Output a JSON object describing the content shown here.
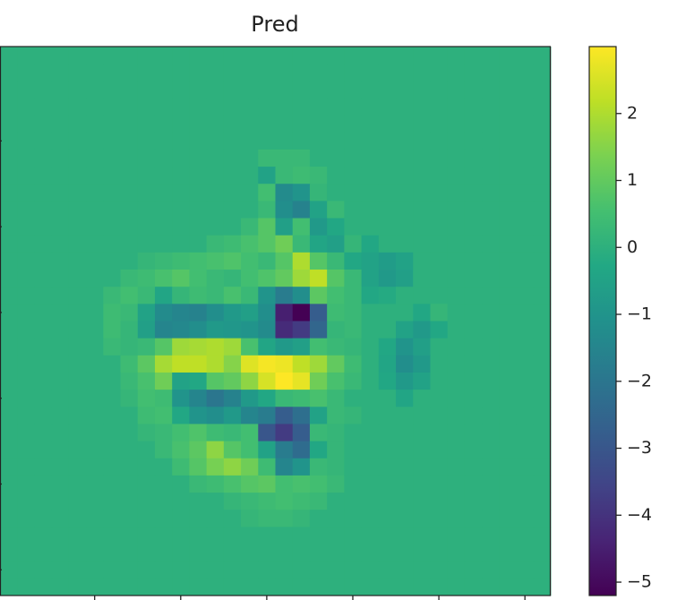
{
  "chart_data": {
    "type": "heatmap",
    "title": "Pred",
    "colormap": "viridis",
    "clim": [
      -5.2,
      3.0
    ],
    "xlim": [
      -0.5,
      31.5
    ],
    "ylim": [
      31.5,
      -0.5
    ],
    "xticks": [
      5,
      10,
      15,
      20,
      25,
      30
    ],
    "yticks": [
      5,
      10,
      15,
      20,
      25,
      30
    ],
    "colorbar_ticks": [
      {
        "value": 2,
        "label": "2"
      },
      {
        "value": 1,
        "label": "1"
      },
      {
        "value": 0,
        "label": "0"
      },
      {
        "value": -1,
        "label": "−1"
      },
      {
        "value": -2,
        "label": "−2"
      },
      {
        "value": -3,
        "label": "−3"
      },
      {
        "value": -4,
        "label": "−4"
      },
      {
        "value": -5,
        "label": "−5"
      }
    ],
    "values": [
      [
        0,
        0,
        0,
        0,
        0,
        0,
        0,
        0,
        0,
        0,
        0,
        0,
        0,
        0,
        0,
        0,
        0,
        0,
        0,
        0,
        0,
        0,
        0,
        0,
        0,
        0,
        0,
        0,
        0,
        0,
        0,
        0
      ],
      [
        0,
        0,
        0,
        0,
        0,
        0,
        0,
        0,
        0,
        0,
        0,
        0,
        0,
        0,
        0,
        0,
        0,
        0,
        0,
        0,
        0,
        0,
        0,
        0,
        0,
        0,
        0,
        0,
        0,
        0,
        0,
        0
      ],
      [
        0,
        0,
        0,
        0,
        0,
        0,
        0,
        0,
        0,
        0,
        0,
        0,
        0,
        0,
        0,
        0,
        0,
        0,
        0,
        0,
        0,
        0,
        0,
        0,
        0,
        0,
        0,
        0,
        0,
        0,
        0,
        0
      ],
      [
        0,
        0,
        0,
        0,
        0,
        0,
        0,
        0,
        0,
        0,
        0,
        0,
        0,
        0,
        0,
        0,
        0,
        0,
        0,
        0,
        0,
        0,
        0,
        0,
        0,
        0,
        0,
        0,
        0,
        0,
        0,
        0
      ],
      [
        0,
        0,
        0,
        0,
        0,
        0,
        0,
        0,
        0,
        0,
        0,
        0,
        0,
        0,
        0,
        0,
        0,
        0,
        0,
        0,
        0,
        0,
        0,
        0,
        0,
        0,
        0,
        0,
        0,
        0,
        0,
        0
      ],
      [
        0,
        0,
        0,
        0,
        0,
        0,
        0,
        0,
        0,
        0,
        0,
        0,
        0,
        0,
        0,
        0,
        0,
        0,
        0,
        0,
        0,
        0,
        0,
        0,
        0,
        0,
        0,
        0,
        0,
        0,
        0,
        0
      ],
      [
        0,
        0,
        0,
        0,
        0,
        0,
        0,
        0,
        0,
        0,
        0,
        0,
        0,
        0,
        0,
        0.3,
        0.3,
        0.3,
        0,
        0,
        0,
        0,
        0,
        0,
        0,
        0,
        0,
        0,
        0,
        0,
        0,
        0
      ],
      [
        0,
        0,
        0,
        0,
        0,
        0,
        0,
        0,
        0,
        0,
        0,
        0,
        0,
        0,
        0,
        -0.5,
        0.3,
        0.4,
        0.3,
        0,
        0,
        0,
        0,
        0,
        0,
        0,
        0,
        0,
        0,
        0,
        0,
        0
      ],
      [
        0,
        0,
        0,
        0,
        0,
        0,
        0,
        0,
        0,
        0,
        0,
        0,
        0,
        0,
        0,
        0.5,
        -1.3,
        -1.0,
        0.2,
        0,
        0,
        0,
        0,
        0,
        0,
        0,
        0,
        0,
        0,
        0,
        0,
        0
      ],
      [
        0,
        0,
        0,
        0,
        0,
        0,
        0,
        0,
        0,
        0,
        0,
        0,
        0,
        0,
        0,
        0.3,
        -1.2,
        -1.6,
        -0.5,
        0.3,
        0,
        0,
        0,
        0,
        0,
        0,
        0,
        0,
        0,
        0,
        0,
        0
      ],
      [
        0,
        0,
        0,
        0,
        0,
        0,
        0,
        0,
        0,
        0,
        0,
        0,
        0,
        0,
        0.3,
        0.8,
        -0.6,
        0.5,
        -0.8,
        -0.3,
        0,
        0,
        0,
        0,
        0,
        0,
        0,
        0,
        0,
        0,
        0,
        0
      ],
      [
        0,
        0,
        0,
        0,
        0,
        0,
        0,
        0,
        0,
        0,
        0,
        0,
        0.3,
        0.4,
        0.6,
        0.8,
        1.2,
        0.3,
        -0.4,
        -0.6,
        0.2,
        -0.3,
        0,
        0,
        0,
        0,
        0,
        0,
        0,
        0,
        0,
        0
      ],
      [
        0,
        0,
        0,
        0,
        0,
        0,
        0,
        0,
        0.2,
        0.3,
        0.4,
        0.5,
        0.6,
        0.7,
        0.5,
        0.3,
        0.8,
        2.0,
        0.8,
        0.3,
        -0.3,
        -0.5,
        -0.7,
        -0.5,
        0,
        0,
        0,
        0,
        0,
        0,
        0,
        0
      ],
      [
        0,
        0,
        0,
        0,
        0,
        0,
        0,
        0.3,
        0.4,
        0.6,
        0.8,
        0.5,
        0.3,
        0.2,
        0.5,
        0.7,
        1.0,
        1.8,
        2.2,
        0.8,
        0.3,
        -0.5,
        -0.8,
        -0.6,
        0,
        0,
        0,
        0,
        0,
        0,
        0,
        0
      ],
      [
        0,
        0,
        0,
        0,
        0,
        0,
        0.3,
        0.5,
        0.3,
        -0.4,
        0.2,
        0.4,
        0.3,
        0.6,
        0.3,
        -1.0,
        -1.8,
        -1.2,
        0.9,
        0.5,
        0.3,
        -0.3,
        -0.2,
        0,
        0,
        0,
        0,
        0,
        0,
        0,
        0,
        0
      ],
      [
        0,
        0,
        0,
        0,
        0,
        0,
        0.4,
        0.3,
        -0.5,
        -1.3,
        -1.5,
        -1.6,
        -1.2,
        -0.8,
        -0.6,
        -1.2,
        -4.5,
        -5.2,
        -2.8,
        0.4,
        0.3,
        0,
        0,
        0,
        -0.3,
        0.2,
        0,
        0,
        0,
        0,
        0,
        0
      ],
      [
        0,
        0,
        0,
        0,
        0,
        0,
        0.4,
        0.2,
        -0.6,
        -1.5,
        -1.4,
        -1.2,
        -0.8,
        -0.9,
        -1.0,
        -1.3,
        -4.2,
        -3.8,
        -2.5,
        0.2,
        0.3,
        0,
        0,
        -0.5,
        -0.8,
        -0.3,
        0,
        0,
        0,
        0,
        0,
        0
      ],
      [
        0,
        0,
        0,
        0,
        0,
        0,
        0.3,
        0.2,
        0.3,
        0.8,
        1.8,
        1.9,
        2.0,
        1.8,
        0.6,
        -0.4,
        -0.8,
        -0.6,
        0.5,
        0.3,
        0.2,
        0,
        -0.3,
        -1.0,
        -0.6,
        0,
        0,
        0,
        0,
        0,
        0,
        0
      ],
      [
        0,
        0,
        0,
        0,
        0,
        0,
        0,
        0.4,
        0.9,
        1.9,
        2.2,
        2.2,
        2.0,
        1.5,
        2.6,
        2.9,
        2.8,
        2.2,
        1.8,
        1.0,
        0.4,
        0,
        -0.4,
        -1.2,
        -0.8,
        0,
        0,
        0,
        0,
        0,
        0,
        0
      ],
      [
        0,
        0,
        0,
        0,
        0,
        0,
        0,
        0.3,
        0.6,
        1.2,
        -0.5,
        -0.3,
        0.8,
        1.0,
        1.6,
        2.5,
        3.0,
        2.7,
        1.2,
        0.6,
        0.3,
        0,
        -0.3,
        -0.8,
        -0.5,
        0,
        0,
        0,
        0,
        0,
        0,
        0
      ],
      [
        0,
        0,
        0,
        0,
        0,
        0,
        0,
        0.2,
        0.5,
        0.4,
        -1.0,
        -1.5,
        -2.0,
        -1.6,
        -0.8,
        -0.3,
        0.3,
        0.4,
        0.6,
        0.3,
        0,
        0,
        0,
        -0.4,
        0,
        0,
        0,
        0,
        0,
        0,
        0,
        0
      ],
      [
        0,
        0,
        0,
        0,
        0,
        0,
        0,
        0,
        0.4,
        0.5,
        -0.3,
        -1.0,
        -1.2,
        -0.8,
        -1.5,
        -1.8,
        -2.8,
        -2.2,
        -0.5,
        0.3,
        0.2,
        0,
        0,
        0,
        0,
        0,
        0,
        0,
        0,
        0,
        0,
        0
      ],
      [
        0,
        0,
        0,
        0,
        0,
        0,
        0,
        0,
        0.2,
        0.3,
        0.5,
        0.7,
        0.4,
        0.3,
        0.5,
        -3.0,
        -3.8,
        -2.8,
        0.3,
        0.2,
        0,
        0,
        0,
        0,
        0,
        0,
        0,
        0,
        0,
        0,
        0,
        0
      ],
      [
        0,
        0,
        0,
        0,
        0,
        0,
        0,
        0,
        0,
        0.3,
        0.6,
        0.9,
        1.6,
        0.8,
        0.5,
        -0.5,
        -1.8,
        -2.3,
        -0.3,
        0.2,
        0,
        0,
        0,
        0,
        0,
        0,
        0,
        0,
        0,
        0,
        0,
        0
      ],
      [
        0,
        0,
        0,
        0,
        0,
        0,
        0,
        0,
        0,
        0,
        0.4,
        0.8,
        1.3,
        1.6,
        1.2,
        0.4,
        -1.5,
        -1.0,
        0.3,
        0.2,
        0,
        0,
        0,
        0,
        0,
        0,
        0,
        0,
        0,
        0,
        0,
        0
      ],
      [
        0,
        0,
        0,
        0,
        0,
        0,
        0,
        0,
        0,
        0,
        0,
        0.3,
        0.4,
        0.6,
        0.8,
        0.9,
        0.5,
        0.6,
        0.5,
        0.3,
        0,
        0,
        0,
        0,
        0,
        0,
        0,
        0,
        0,
        0,
        0,
        0
      ],
      [
        0,
        0,
        0,
        0,
        0,
        0,
        0,
        0,
        0,
        0,
        0,
        0,
        0,
        0.2,
        0.3,
        0.4,
        0.5,
        0.4,
        0.3,
        0,
        0,
        0,
        0,
        0,
        0,
        0,
        0,
        0,
        0,
        0,
        0,
        0
      ],
      [
        0,
        0,
        0,
        0,
        0,
        0,
        0,
        0,
        0,
        0,
        0,
        0,
        0,
        0,
        0.2,
        0.3,
        0.3,
        0.2,
        0,
        0,
        0,
        0,
        0,
        0,
        0,
        0,
        0,
        0,
        0,
        0,
        0,
        0
      ],
      [
        0,
        0,
        0,
        0,
        0,
        0,
        0,
        0,
        0,
        0,
        0,
        0,
        0,
        0,
        0,
        0,
        0,
        0,
        0,
        0,
        0,
        0,
        0,
        0,
        0,
        0,
        0,
        0,
        0,
        0,
        0,
        0
      ],
      [
        0,
        0,
        0,
        0,
        0,
        0,
        0,
        0,
        0,
        0,
        0,
        0,
        0,
        0,
        0,
        0,
        0,
        0,
        0,
        0,
        0,
        0,
        0,
        0,
        0,
        0,
        0,
        0,
        0,
        0,
        0,
        0
      ],
      [
        0,
        0,
        0,
        0,
        0,
        0,
        0,
        0,
        0,
        0,
        0,
        0,
        0,
        0,
        0,
        0,
        0,
        0,
        0,
        0,
        0,
        0,
        0,
        0,
        0,
        0,
        0,
        0,
        0,
        0,
        0,
        0
      ],
      [
        0,
        0,
        0,
        0,
        0,
        0,
        0,
        0,
        0,
        0,
        0,
        0,
        0,
        0,
        0,
        0,
        0,
        0,
        0,
        0,
        0,
        0,
        0,
        0,
        0,
        0,
        0,
        0,
        0,
        0,
        0,
        0
      ]
    ]
  }
}
